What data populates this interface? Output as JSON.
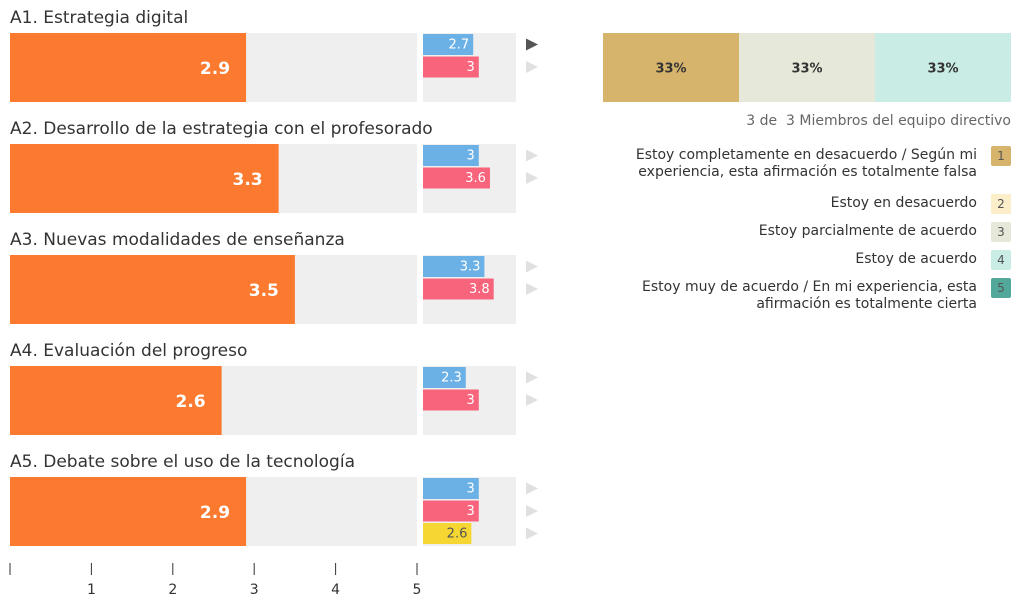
{
  "chart_data": [
    {
      "type": "bar",
      "categories": [
        "A1. Estrategia digital",
        "A2. Desarrollo de la estrategia con el profesorado",
        "A3. Nuevas modalidades de enseñanza",
        "A4. Evaluación del progreso",
        "A5. Debate sobre el uso de la tecnología"
      ],
      "series": [
        {
          "color": "#fb7a2f",
          "values": [
            2.9,
            3.3,
            3.5,
            2.6,
            2.9
          ]
        },
        {
          "color": "#6cb1e6",
          "values": [
            2.7,
            3,
            3.3,
            2.3,
            3
          ]
        },
        {
          "color": "#f7647c",
          "values": [
            3,
            3.6,
            3.8,
            3,
            3
          ]
        },
        {
          "color": "#f6d632",
          "values": [
            null,
            null,
            null,
            null,
            2.6
          ]
        }
      ],
      "xlim": [
        0,
        5
      ],
      "xticks": [
        1,
        2,
        3,
        4,
        5
      ]
    },
    {
      "type": "stacked_bar",
      "caption": "3 de  3 Miembros del equipo directivo",
      "series": [
        {
          "name": "Estoy completamente en desacuerdo / Según mi experiencia, esta afirmación es totalmente falsa",
          "code": 1,
          "color": "#d7b46c",
          "values": [
            33
          ],
          "value_labels": [
            "33%"
          ]
        },
        {
          "name": "Estoy en desacuerdo",
          "code": 2,
          "color": "#fbeec9",
          "values": [
            0
          ]
        },
        {
          "name": "Estoy parcialmente de acuerdo",
          "code": 3,
          "color": "#e6e9d9",
          "values": [
            33
          ],
          "value_labels": [
            "33%"
          ]
        },
        {
          "name": "Estoy de acuerdo",
          "code": 4,
          "color": "#c9ece5",
          "values": [
            33
          ],
          "value_labels": [
            "33%"
          ]
        },
        {
          "name": "Estoy muy de acuerdo / En mi experiencia, esta afirmación es totalmente cierta",
          "code": 5,
          "color": "#52a99b",
          "values": [
            0
          ]
        }
      ]
    }
  ]
}
